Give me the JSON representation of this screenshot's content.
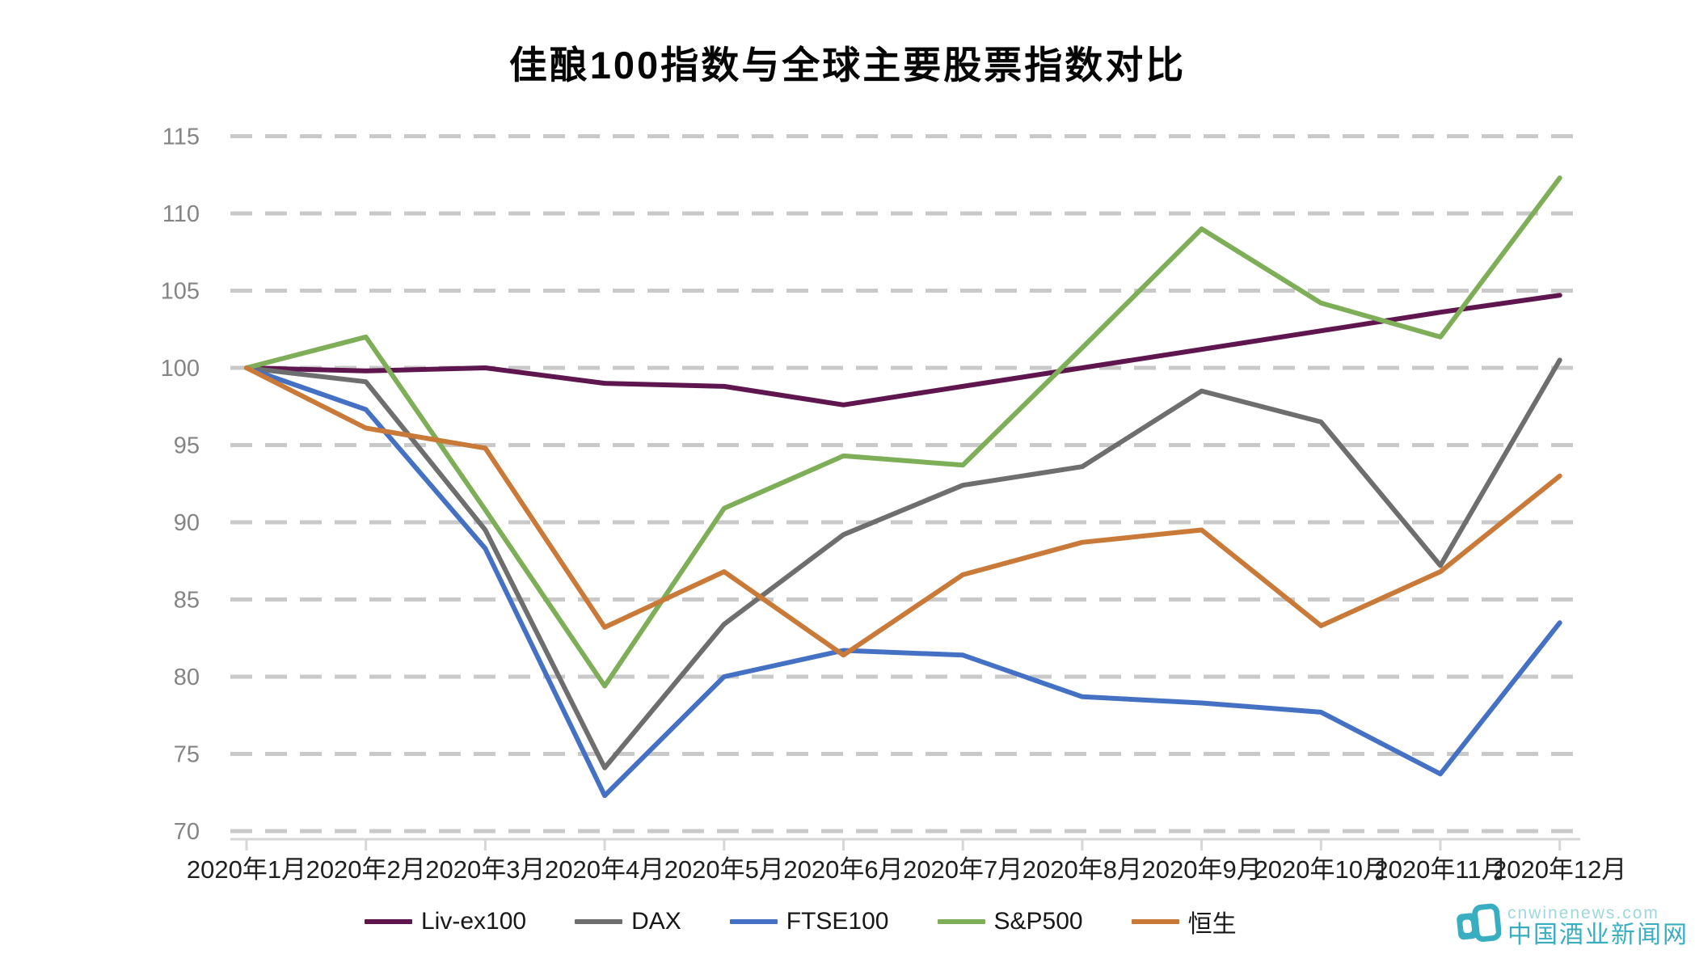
{
  "title": "佳酿100指数与全球主要股票指数对比",
  "watermark": {
    "line1": "cnwinenews.com",
    "line2": "中国酒业新闻网",
    "color": "#38aec0",
    "color_light": "#9ed7de"
  },
  "chart_data": {
    "type": "line",
    "title": "佳酿100指数与全球主要股票指数对比",
    "categories": [
      "2020年1月",
      "2020年2月",
      "2020年3月",
      "2020年4月",
      "2020年5月",
      "2020年6月",
      "2020年7月",
      "2020年8月",
      "2020年9月",
      "2020年10月",
      "2020年11月",
      "2020年12月"
    ],
    "series": [
      {
        "name": "Liv-ex100",
        "color": "#5f164f",
        "values": [
          100,
          99.8,
          100.0,
          99.0,
          98.8,
          97.6,
          98.8,
          100.0,
          101.2,
          102.4,
          103.6,
          104.7
        ]
      },
      {
        "name": "DAX",
        "color": "#6e6e6e",
        "values": [
          100,
          99.1,
          89.5,
          74.1,
          83.4,
          89.2,
          92.4,
          93.6,
          98.5,
          96.5,
          87.2,
          100.5
        ]
      },
      {
        "name": "FTSE100",
        "color": "#4471c4",
        "values": [
          100,
          97.3,
          88.3,
          72.3,
          80.0,
          81.7,
          81.4,
          78.7,
          78.3,
          77.7,
          73.7,
          83.5
        ]
      },
      {
        "name": "S&P500",
        "color": "#7eae57",
        "values": [
          100,
          102.0,
          90.8,
          79.4,
          90.9,
          94.3,
          93.7,
          101.3,
          109.0,
          104.2,
          102.0,
          112.3
        ]
      },
      {
        "name": "恒生",
        "color": "#c97a38",
        "values": [
          100,
          96.1,
          94.8,
          83.2,
          86.8,
          81.4,
          86.6,
          88.7,
          89.5,
          83.3,
          86.8,
          93.0
        ]
      }
    ],
    "ylim": [
      70,
      115
    ],
    "y_ticks": [
      70,
      75,
      80,
      85,
      90,
      95,
      100,
      105,
      110,
      115
    ],
    "xlabel": "",
    "ylabel": "",
    "grid": "horizontal-dashed",
    "legend_position": "bottom",
    "styles": {
      "grid_color": "#c9c9c9",
      "axis_color": "#d6d6d6",
      "y_tick_color": "#848484",
      "x_tick_color": "#1f1f1f"
    }
  }
}
